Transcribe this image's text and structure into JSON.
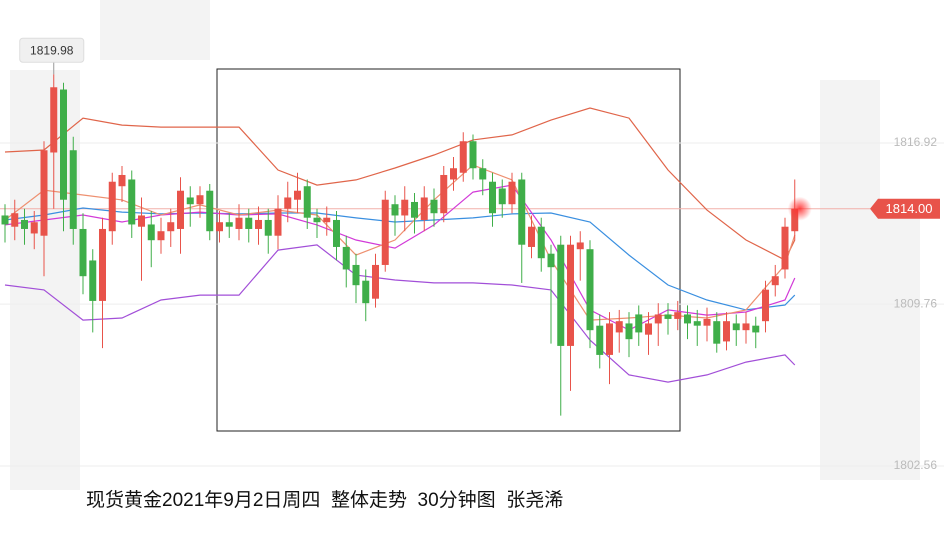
{
  "chart_data": {
    "type": "candlestick",
    "title": "现货黄金2021年9月2日周四  整体走势  30分钟图  张尧浠",
    "up_color": "#e8534a",
    "down_color": "#3fae49",
    "ylim": [
      1799.76,
      1823.28
    ],
    "yticks": [
      1802.56,
      1809.76,
      1816.92
    ],
    "grid": true,
    "high_marker": 1819.98,
    "last_price": {
      "value": 1814,
      "label": "1814.00"
    },
    "open": [
      1813.7,
      1813.2,
      1813.5,
      1812.9,
      1812.8,
      1816.5,
      1819.3,
      1816.6,
      1813.1,
      1811.7,
      1809.9,
      1813.0,
      1815.0,
      1815.3,
      1813.2,
      1813.3,
      1812.6,
      1813.0,
      1813.1,
      1814.5,
      1814.2,
      1814.8,
      1813.0,
      1813.4,
      1813.1,
      1813.6,
      1813.1,
      1813.5,
      1812.8,
      1814.0,
      1814.4,
      1815.0,
      1813.6,
      1813.4,
      1813.5,
      1812.3,
      1811.5,
      1810.8,
      1810.0,
      1811.5,
      1814.2,
      1813.7,
      1814.3,
      1813.5,
      1814.4,
      1813.8,
      1815.3,
      1815.6,
      1817.0,
      1815.8,
      1815.2,
      1814.9,
      1814.2,
      1815.3,
      1812.3,
      1813.2,
      1812.0,
      1812.4,
      1807.9,
      1812.2,
      1812.2,
      1808.8,
      1807.5,
      1808.5,
      1808.9,
      1809.3,
      1808.4,
      1808.9,
      1809.3,
      1809.1,
      1809.3,
      1809.0,
      1808.8,
      1809.0,
      1808.1,
      1808.9,
      1808.6,
      1808.8,
      1809.0,
      1810.6,
      1811.3,
      1813.0
    ],
    "close": [
      1813.3,
      1813.8,
      1813.1,
      1813.4,
      1816.6,
      1819.4,
      1814.4,
      1813.1,
      1811.0,
      1809.9,
      1813.1,
      1815.2,
      1815.5,
      1813.3,
      1813.7,
      1812.6,
      1813.0,
      1813.4,
      1814.8,
      1814.2,
      1814.6,
      1813.0,
      1813.4,
      1813.2,
      1813.6,
      1813.1,
      1813.5,
      1812.8,
      1814.0,
      1814.5,
      1814.8,
      1813.6,
      1813.4,
      1813.6,
      1812.3,
      1811.3,
      1810.6,
      1809.8,
      1811.5,
      1814.4,
      1813.7,
      1814.4,
      1813.6,
      1814.5,
      1813.8,
      1815.5,
      1815.8,
      1817.0,
      1815.8,
      1815.3,
      1813.8,
      1814.2,
      1815.2,
      1812.4,
      1813.2,
      1811.8,
      1811.4,
      1807.9,
      1812.4,
      1812.5,
      1808.6,
      1807.5,
      1808.9,
      1809.0,
      1808.2,
      1808.5,
      1808.9,
      1809.3,
      1809.1,
      1809.4,
      1808.9,
      1808.8,
      1809.1,
      1808.0,
      1809.0,
      1808.6,
      1808.9,
      1808.5,
      1810.4,
      1811.0,
      1813.2,
      1814.0
    ],
    "high": [
      1814.2,
      1814.4,
      1814.0,
      1813.9,
      1817.0,
      1819.98,
      1819.6,
      1817.2,
      1813.8,
      1812.2,
      1813.6,
      1815.6,
      1815.9,
      1815.7,
      1814.5,
      1813.9,
      1813.6,
      1814.0,
      1815.4,
      1815.0,
      1815.0,
      1815.1,
      1813.9,
      1813.8,
      1814.2,
      1814.0,
      1814.1,
      1814.0,
      1814.6,
      1815.2,
      1815.6,
      1815.3,
      1814.0,
      1814.1,
      1813.9,
      1812.8,
      1812.0,
      1811.3,
      1812.0,
      1814.8,
      1814.6,
      1815.0,
      1814.7,
      1815.0,
      1814.9,
      1815.9,
      1816.3,
      1817.4,
      1817.3,
      1816.2,
      1815.6,
      1815.3,
      1815.6,
      1815.6,
      1813.7,
      1813.6,
      1812.4,
      1812.8,
      1812.8,
      1813.0,
      1812.6,
      1809.3,
      1809.4,
      1809.5,
      1809.4,
      1809.7,
      1809.4,
      1809.8,
      1809.8,
      1809.9,
      1809.7,
      1809.5,
      1809.6,
      1809.4,
      1809.4,
      1809.3,
      1809.4,
      1809.2,
      1810.8,
      1811.5,
      1813.6,
      1815.3
    ],
    "low": [
      1812.5,
      1812.6,
      1812.4,
      1812.2,
      1811.0,
      1814.0,
      1813.0,
      1812.4,
      1810.2,
      1808.5,
      1807.8,
      1812.4,
      1814.3,
      1812.7,
      1810.8,
      1811.4,
      1812.0,
      1812.3,
      1812.0,
      1813.2,
      1813.6,
      1812.6,
      1812.5,
      1812.7,
      1812.6,
      1812.5,
      1812.4,
      1812.0,
      1812.2,
      1813.4,
      1813.8,
      1813.1,
      1812.7,
      1812.8,
      1811.7,
      1810.5,
      1809.8,
      1809.0,
      1809.6,
      1811.2,
      1812.8,
      1813.0,
      1812.9,
      1813.0,
      1813.2,
      1813.4,
      1814.8,
      1815.2,
      1815.3,
      1814.6,
      1813.2,
      1813.6,
      1813.8,
      1810.7,
      1811.8,
      1811.2,
      1808.0,
      1804.8,
      1805.9,
      1810.8,
      1807.8,
      1806.9,
      1806.2,
      1807.6,
      1807.4,
      1807.9,
      1807.5,
      1807.9,
      1808.4,
      1808.6,
      1808.2,
      1807.9,
      1808.1,
      1807.6,
      1807.7,
      1807.9,
      1808.0,
      1807.8,
      1808.5,
      1810.1,
      1810.9,
      1812.6
    ],
    "overlays": [
      {
        "color": "#e0654a",
        "x": [
          0,
          4,
          8,
          12,
          16,
          20,
          24,
          28,
          32,
          36,
          40,
          44,
          48,
          52,
          56,
          60,
          64,
          68,
          72,
          76,
          80,
          81
        ],
        "values": [
          1816.52,
          1816.61,
          1818.03,
          1817.72,
          1817.63,
          1817.63,
          1817.63,
          1815.72,
          1815.05,
          1815.28,
          1815.81,
          1816.39,
          1817.06,
          1817.28,
          1817.94,
          1818.48,
          1818.03,
          1815.72,
          1813.94,
          1812.61,
          1811.72,
          1812.61
        ]
      },
      {
        "color": "#a24fd8",
        "x": [
          0,
          4,
          8,
          12,
          16,
          20,
          24,
          28,
          32,
          36,
          40,
          44,
          48,
          52,
          56,
          60,
          64,
          68,
          72,
          76,
          80,
          81
        ],
        "values": [
          1810.61,
          1810.39,
          1809.05,
          1809.14,
          1809.94,
          1810.16,
          1810.16,
          1812.16,
          1812.39,
          1811.05,
          1810.83,
          1810.7,
          1810.7,
          1810.61,
          1810.39,
          1808.16,
          1806.61,
          1806.29,
          1806.61,
          1807.18,
          1807.5,
          1807.05
        ]
      },
      {
        "color": "#3a8fe0",
        "x": [
          0,
          4,
          8,
          12,
          16,
          20,
          24,
          28,
          32,
          36,
          40,
          44,
          48,
          52,
          56,
          60,
          64,
          68,
          72,
          76,
          80,
          81
        ],
        "values": [
          1813.5,
          1813.72,
          1814.03,
          1813.85,
          1813.77,
          1813.81,
          1813.77,
          1813.81,
          1813.81,
          1813.59,
          1813.41,
          1813.5,
          1813.59,
          1813.77,
          1813.81,
          1813.41,
          1811.94,
          1810.61,
          1809.94,
          1809.5,
          1809.72,
          1810.16
        ]
      },
      {
        "color": "#d23ad8",
        "x": [
          0,
          4,
          8,
          12,
          16,
          20,
          24,
          28,
          32,
          36,
          40,
          44,
          48,
          52,
          56,
          60,
          64,
          68,
          72,
          76,
          80,
          81
        ],
        "values": [
          1813.28,
          1813.5,
          1813.72,
          1813.41,
          1813.72,
          1813.85,
          1813.72,
          1813.77,
          1813.28,
          1812.61,
          1812.25,
          1813.28,
          1814.74,
          1815.05,
          1812.61,
          1809.5,
          1808.61,
          1809.5,
          1809.27,
          1809.41,
          1809.94,
          1810.92
        ]
      },
      {
        "color": "#ee9070",
        "x": [
          0,
          4,
          8,
          12,
          16,
          20,
          24,
          28,
          32,
          36,
          40,
          44,
          48,
          52,
          56,
          60,
          64,
          68,
          72,
          76,
          80,
          81
        ],
        "values": [
          1813.5,
          1814.83,
          1814.61,
          1814.39,
          1813.72,
          1814.17,
          1813.72,
          1813.94,
          1813.72,
          1811.94,
          1812.61,
          1814.39,
          1815.94,
          1815.28,
          1811.72,
          1809.05,
          1809.14,
          1809.27,
          1809.14,
          1809.5,
          1811.5,
          1812.83
        ]
      }
    ]
  }
}
